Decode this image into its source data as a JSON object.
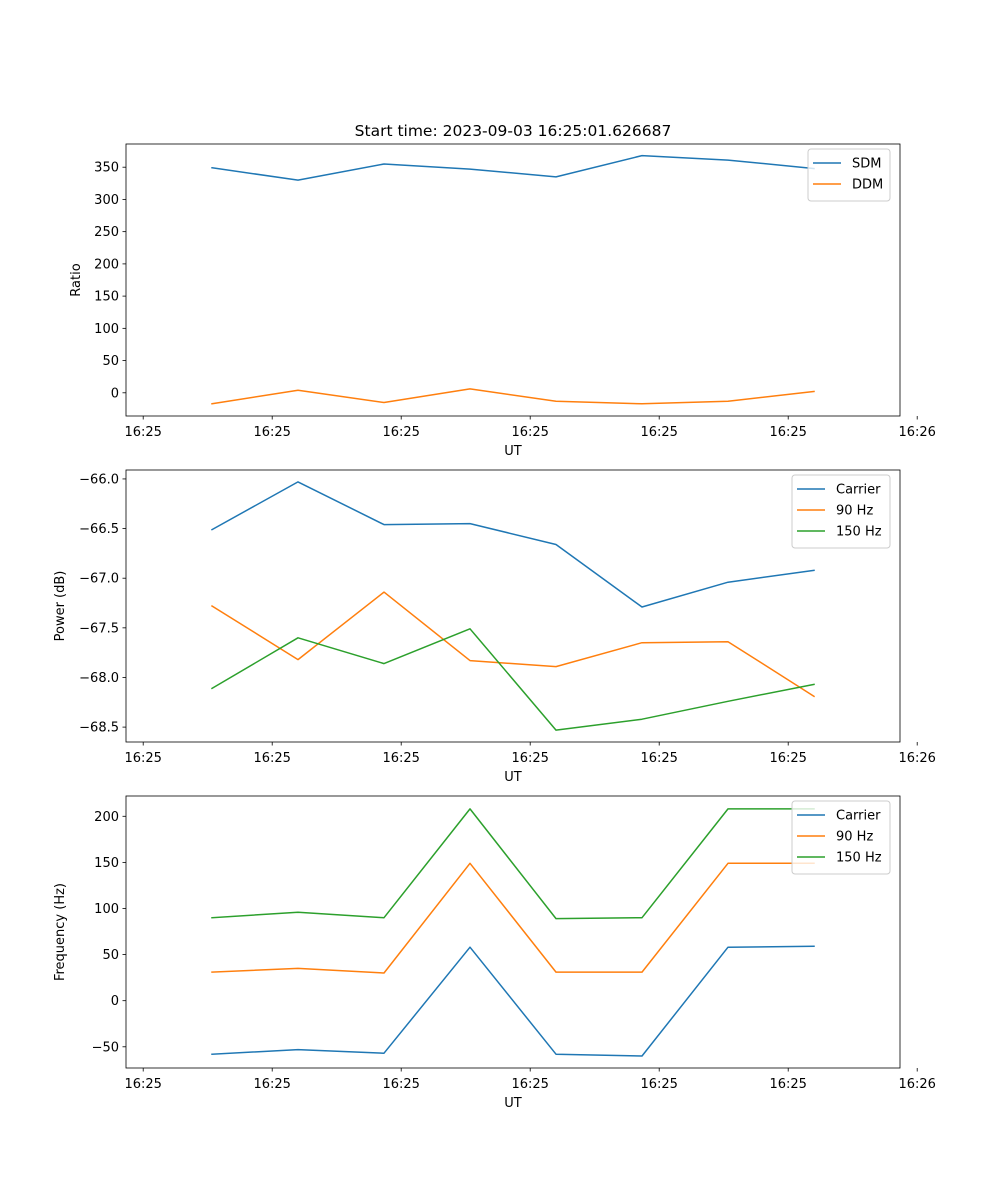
{
  "chart_data": [
    {
      "type": "line",
      "title": "Start time: 2023-09-03 16:25:01.626687",
      "xlabel": "UT",
      "ylabel": "Ratio",
      "xlim": [
        0,
        9
      ],
      "x_ticks": [
        0.2,
        1.7,
        3.2,
        4.7,
        6.2,
        7.7,
        9.2
      ],
      "x_tick_labels": [
        "16:25",
        "16:25",
        "16:25",
        "16:25",
        "16:25",
        "16:25",
        "16:26"
      ],
      "ylim": [
        -36,
        386
      ],
      "y_ticks": [
        0,
        50,
        100,
        150,
        200,
        250,
        300,
        350
      ],
      "legend_position": "top-right",
      "x": [
        1,
        2,
        3,
        4,
        5,
        6,
        7,
        8
      ],
      "series": [
        {
          "name": "SDM",
          "color": "#1f77b4",
          "values": [
            349,
            330,
            355,
            347,
            335,
            368,
            361,
            348
          ]
        },
        {
          "name": "DDM",
          "color": "#ff7f0e",
          "values": [
            -17,
            4,
            -15,
            6,
            -13,
            -17,
            -13,
            2
          ]
        }
      ]
    },
    {
      "type": "line",
      "title": "",
      "xlabel": "UT",
      "ylabel": "Power (dB)",
      "xlim": [
        0,
        9
      ],
      "x_ticks": [
        0.2,
        1.7,
        3.2,
        4.7,
        6.2,
        7.7,
        9.2
      ],
      "x_tick_labels": [
        "16:25",
        "16:25",
        "16:25",
        "16:25",
        "16:25",
        "16:25",
        "16:26"
      ],
      "ylim": [
        -68.65,
        -65.91
      ],
      "y_ticks": [
        -68.5,
        -68.0,
        -67.5,
        -67.0,
        -66.5,
        -66.0
      ],
      "y_tick_labels": [
        "−68.5",
        "−68.0",
        "−67.5",
        "−67.0",
        "−66.5",
        "−66.0"
      ],
      "legend_position": "top-right",
      "x": [
        1,
        2,
        3,
        4,
        5,
        6,
        7,
        8
      ],
      "series": [
        {
          "name": "Carrier",
          "color": "#1f77b4",
          "values": [
            -66.51,
            -66.03,
            -66.46,
            -66.45,
            -66.66,
            -67.29,
            -67.04,
            -66.92
          ]
        },
        {
          "name": "90 Hz",
          "color": "#ff7f0e",
          "values": [
            -67.28,
            -67.82,
            -67.14,
            -67.83,
            -67.89,
            -67.65,
            -67.64,
            -68.19
          ]
        },
        {
          "name": "150 Hz",
          "color": "#2ca02c",
          "values": [
            -68.11,
            -67.6,
            -67.86,
            -67.51,
            -68.53,
            -68.42,
            -68.24,
            -68.07
          ]
        }
      ]
    },
    {
      "type": "line",
      "title": "",
      "xlabel": "UT",
      "ylabel": "Frequency (Hz)",
      "xlim": [
        0,
        9
      ],
      "x_ticks": [
        0.2,
        1.7,
        3.2,
        4.7,
        6.2,
        7.7,
        9.2
      ],
      "x_tick_labels": [
        "16:25",
        "16:25",
        "16:25",
        "16:25",
        "16:25",
        "16:25",
        "16:26"
      ],
      "ylim": [
        -73,
        222
      ],
      "y_ticks": [
        -50,
        0,
        50,
        100,
        150,
        200
      ],
      "y_tick_labels": [
        "−50",
        "0",
        "50",
        "100",
        "150",
        "200"
      ],
      "legend_position": "top-right",
      "x": [
        1,
        2,
        3,
        4,
        5,
        6,
        7,
        8
      ],
      "series": [
        {
          "name": "Carrier",
          "color": "#1f77b4",
          "values": [
            -58,
            -53,
            -57,
            58,
            -58,
            -60,
            58,
            59
          ]
        },
        {
          "name": "90 Hz",
          "color": "#ff7f0e",
          "values": [
            31,
            35,
            30,
            149,
            31,
            31,
            149,
            149
          ]
        },
        {
          "name": "150 Hz",
          "color": "#2ca02c",
          "values": [
            90,
            96,
            90,
            208,
            89,
            90,
            208,
            208
          ]
        }
      ]
    }
  ]
}
